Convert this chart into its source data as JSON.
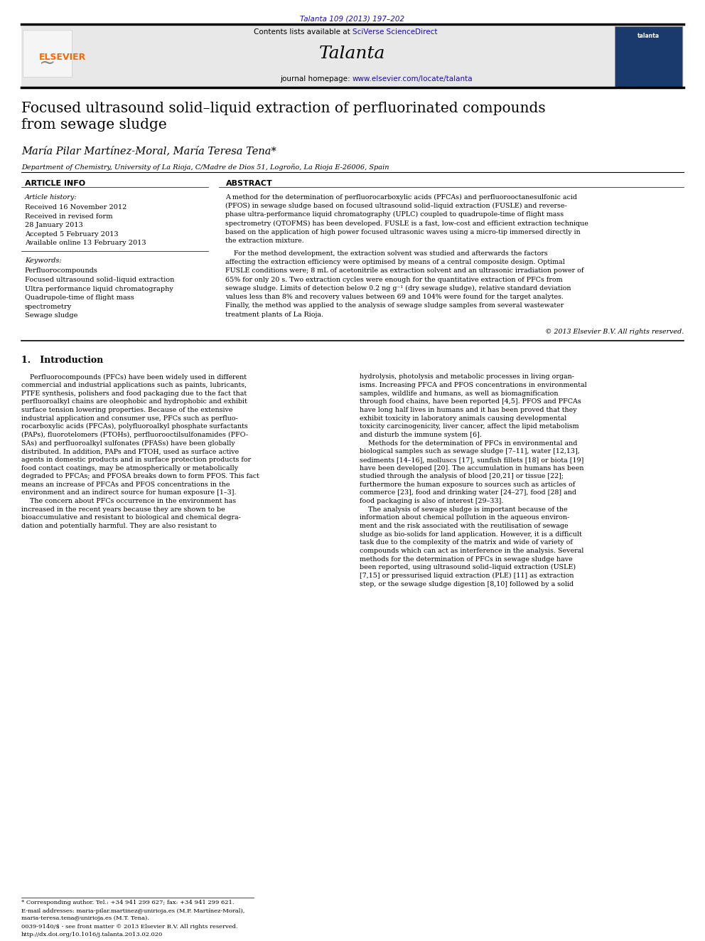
{
  "page_width": 9.92,
  "page_height": 13.23,
  "bg_color": "#ffffff",
  "top_citation": "Talanta 109 (2013) 197–202",
  "top_citation_color": "#1a0dab",
  "journal_header_bg": "#e8e8e8",
  "journal_name": "Talanta",
  "journal_url_prefix": "journal homepage: ",
  "journal_url_link": "www.elsevier.com/locate/talanta",
  "header_text_prefix": "Contents lists available at ",
  "header_text_link": "SciVerse ScienceDirect",
  "sciverse_color": "#1a0dab",
  "elsevier_color": "#ff6600",
  "article_title": "Focused ultrasound solid–liquid extraction of perfluorinated compounds\nfrom sewage sludge",
  "authors": "María Pilar Martínez-Moral, María Teresa Tena*",
  "affiliation": "Department of Chemistry, University of La Rioja, C/Madre de Dios 51, Logroño, La Rioja E-26006, Spain",
  "article_info_header": "ARTICLE INFO",
  "abstract_header": "ABSTRACT",
  "article_history_label": "Article history:",
  "article_history_lines": [
    "Received 16 November 2012",
    "Received in revised form",
    "28 January 2013",
    "Accepted 5 February 2013",
    "Available online 13 February 2013"
  ],
  "keywords_label": "Keywords:",
  "keywords_lines": [
    "Perfluorocompounds",
    "Focused ultrasound solid–liquid extraction",
    "Ultra performance liquid chromatography",
    "Quadrupole-time of flight mass",
    "spectrometry",
    "Sewage sludge"
  ],
  "abstract_p1_lines": [
    "A method for the determination of perfluorocarboxylic acids (PFCAs) and perfluorooctanesulfonic acid",
    "(PFOS) in sewage sludge based on focused ultrasound solid–liquid extraction (FUSLE) and reverse-",
    "phase ultra-performance liquid chromatography (UPLC) coupled to quadrupole-time of flight mass",
    "spectrometry (QTOFMS) has been developed. FUSLE is a fast, low-cost and efficient extraction technique",
    "based on the application of high power focused ultrasonic waves using a micro-tip immersed directly in",
    "the extraction mixture."
  ],
  "abstract_p2_lines": [
    "    For the method development, the extraction solvent was studied and afterwards the factors",
    "affecting the extraction efficiency were optimised by means of a central composite design. Optimal",
    "FUSLE conditions were; 8 mL of acetonitrile as extraction solvent and an ultrasonic irradiation power of",
    "65% for only 20 s. Two extraction cycles were enough for the quantitative extraction of PFCs from",
    "sewage sludge. Limits of detection below 0.2 ng g⁻¹ (dry sewage sludge), relative standard deviation",
    "values less than 8% and recovery values between 69 and 104% were found for the target analytes.",
    "Finally, the method was applied to the analysis of sewage sludge samples from several wastewater",
    "treatment plants of La Rioja."
  ],
  "copyright": "© 2013 Elsevier B.V. All rights reserved.",
  "intro_header": "1.   Introduction",
  "intro_col1_lines": [
    "    Perfluorocompounds (PFCs) have been widely used in different",
    "commercial and industrial applications such as paints, lubricants,",
    "PTFE synthesis, polishers and food packaging due to the fact that",
    "perfluoroalkyl chains are oleophobic and hydrophobic and exhibit",
    "surface tension lowering properties. Because of the extensive",
    "industrial application and consumer use, PFCs such as perfluo-",
    "rocarboxylic acids (PFCAs), polyfluoroalkyl phosphate surfactants",
    "(PAPs), fluorotelomers (FTOHs), perfluorooctilsulfonamides (PFO-",
    "SAs) and perfluoroalkyl sulfonates (PFASs) have been globally",
    "distributed. In addition, PAPs and FTOH, used as surface active",
    "agents in domestic products and in surface protection products for",
    "food contact coatings, may be atmospherically or metabolically",
    "degraded to PFCAs; and PFOSA breaks down to form PFOS. This fact",
    "means an increase of PFCAs and PFOS concentrations in the",
    "environment and an indirect source for human exposure [1–3].",
    "    The concern about PFCs occurrence in the environment has",
    "increased in the recent years because they are shown to be",
    "bioaccumulative and resistant to biological and chemical degra-",
    "dation and potentially harmful. They are also resistant to"
  ],
  "intro_col2_lines": [
    "hydrolysis, photolysis and metabolic processes in living organ-",
    "isms. Increasing PFCA and PFOS concentrations in environmental",
    "samples, wildlife and humans, as well as biomagnification",
    "through food chains, have been reported [4,5]. PFOS and PFCAs",
    "have long half lives in humans and it has been proved that they",
    "exhibit toxicity in laboratory animals causing developmental",
    "toxicity carcinogenicity, liver cancer, affect the lipid metabolism",
    "and disturb the immune system [6].",
    "    Methods for the determination of PFCs in environmental and",
    "biological samples such as sewage sludge [7–11], water [12,13],",
    "sediments [14–16], molluscs [17], sunfish fillets [18] or biota [19]",
    "have been developed [20]. The accumulation in humans has been",
    "studied through the analysis of blood [20,21] or tissue [22];",
    "furthermore the human exposure to sources such as articles of",
    "commerce [23], food and drinking water [24–27], food [28] and",
    "food packaging is also of interest [29–33].",
    "    The analysis of sewage sludge is important because of the",
    "information about chemical pollution in the aqueous environ-",
    "ment and the risk associated with the reutilisation of sewage",
    "sludge as bio-solids for land application. However, it is a difficult",
    "task due to the complexity of the matrix and wide of variety of",
    "compounds which can act as interference in the analysis. Several",
    "methods for the determination of PFCs in sewage sludge have",
    "been reported, using ultrasound solid–liquid extraction (USLE)",
    "[7,15] or pressurised liquid extraction (PLE) [11] as extraction",
    "step, or the sewage sludge digestion [8,10] followed by a solid"
  ],
  "footnote1": "* Corresponding author. Tel.: +34 941 299 627; fax: +34 941 299 621.",
  "footnote2a": "E-mail addresses: maria-pilar.martinez@unirioja.es (M.P. Martínez-Moral),",
  "footnote2b": "maria-teresa.tena@unirioja.es (M.T. Tena).",
  "footnote3a": "0039-9140/$ - see front matter © 2013 Elsevier B.V. All rights reserved.",
  "footnote3b": "http://dx.doi.org/10.1016/j.talanta.2013.02.020"
}
